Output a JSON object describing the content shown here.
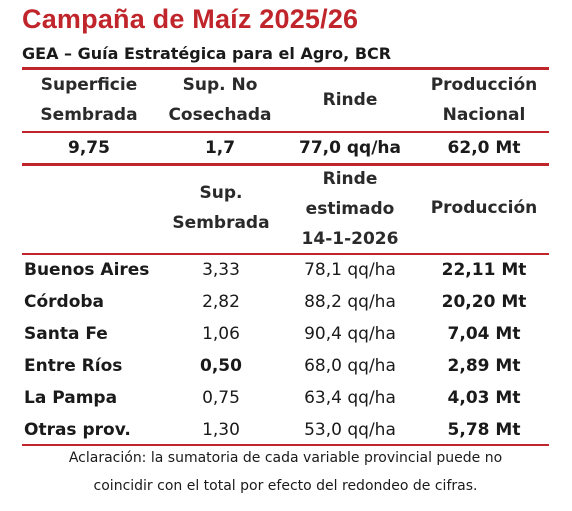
{
  "title": "Campaña de Maíz 2025/26",
  "subtitle": "GEA – Guía Estratégica para el Agro, BCR",
  "national": {
    "headers": [
      [
        "Superficie",
        "Sembrada"
      ],
      [
        "Sup. No",
        "Cosechada"
      ],
      [
        "Rinde"
      ],
      [
        "Producción",
        "Nacional"
      ]
    ],
    "values": [
      "9,75",
      "1,7",
      "77,0 qq/ha",
      "62,0 Mt"
    ]
  },
  "provincial": {
    "headers": {
      "sup": [
        "Sup.",
        "Sembrada"
      ],
      "rinde": [
        "Rinde",
        "estimado",
        "14-1-2026"
      ],
      "prod": "Producción"
    },
    "rows": [
      {
        "name": "Buenos Aires",
        "sup": "3,33",
        "rinde": "78,1 qq/ha",
        "prod": "22,11 Mt"
      },
      {
        "name": "Córdoba",
        "sup": "2,82",
        "rinde": "88,2 qq/ha",
        "prod": "20,20 Mt"
      },
      {
        "name": "Santa Fe",
        "sup": "1,06",
        "rinde": "90,4 qq/ha",
        "prod": "7,04 Mt"
      },
      {
        "name": "Entre Ríos",
        "sup": "0,50",
        "rinde": "68,0 qq/ha",
        "prod": "2,89 Mt"
      },
      {
        "name": "La Pampa",
        "sup": "0,75",
        "rinde": "63,4 qq/ha",
        "prod": "4,03 Mt"
      },
      {
        "name": "Otras prov.",
        "sup": "1,30",
        "rinde": "53,0 qq/ha",
        "prod": "5,78 Mt"
      }
    ]
  },
  "note": [
    "Aclaración: la sumatoria de cada variable provincial puede no",
    "coincidir con el total por efecto del redondeo de cifras."
  ],
  "colors": {
    "accent": "#c0252b"
  }
}
